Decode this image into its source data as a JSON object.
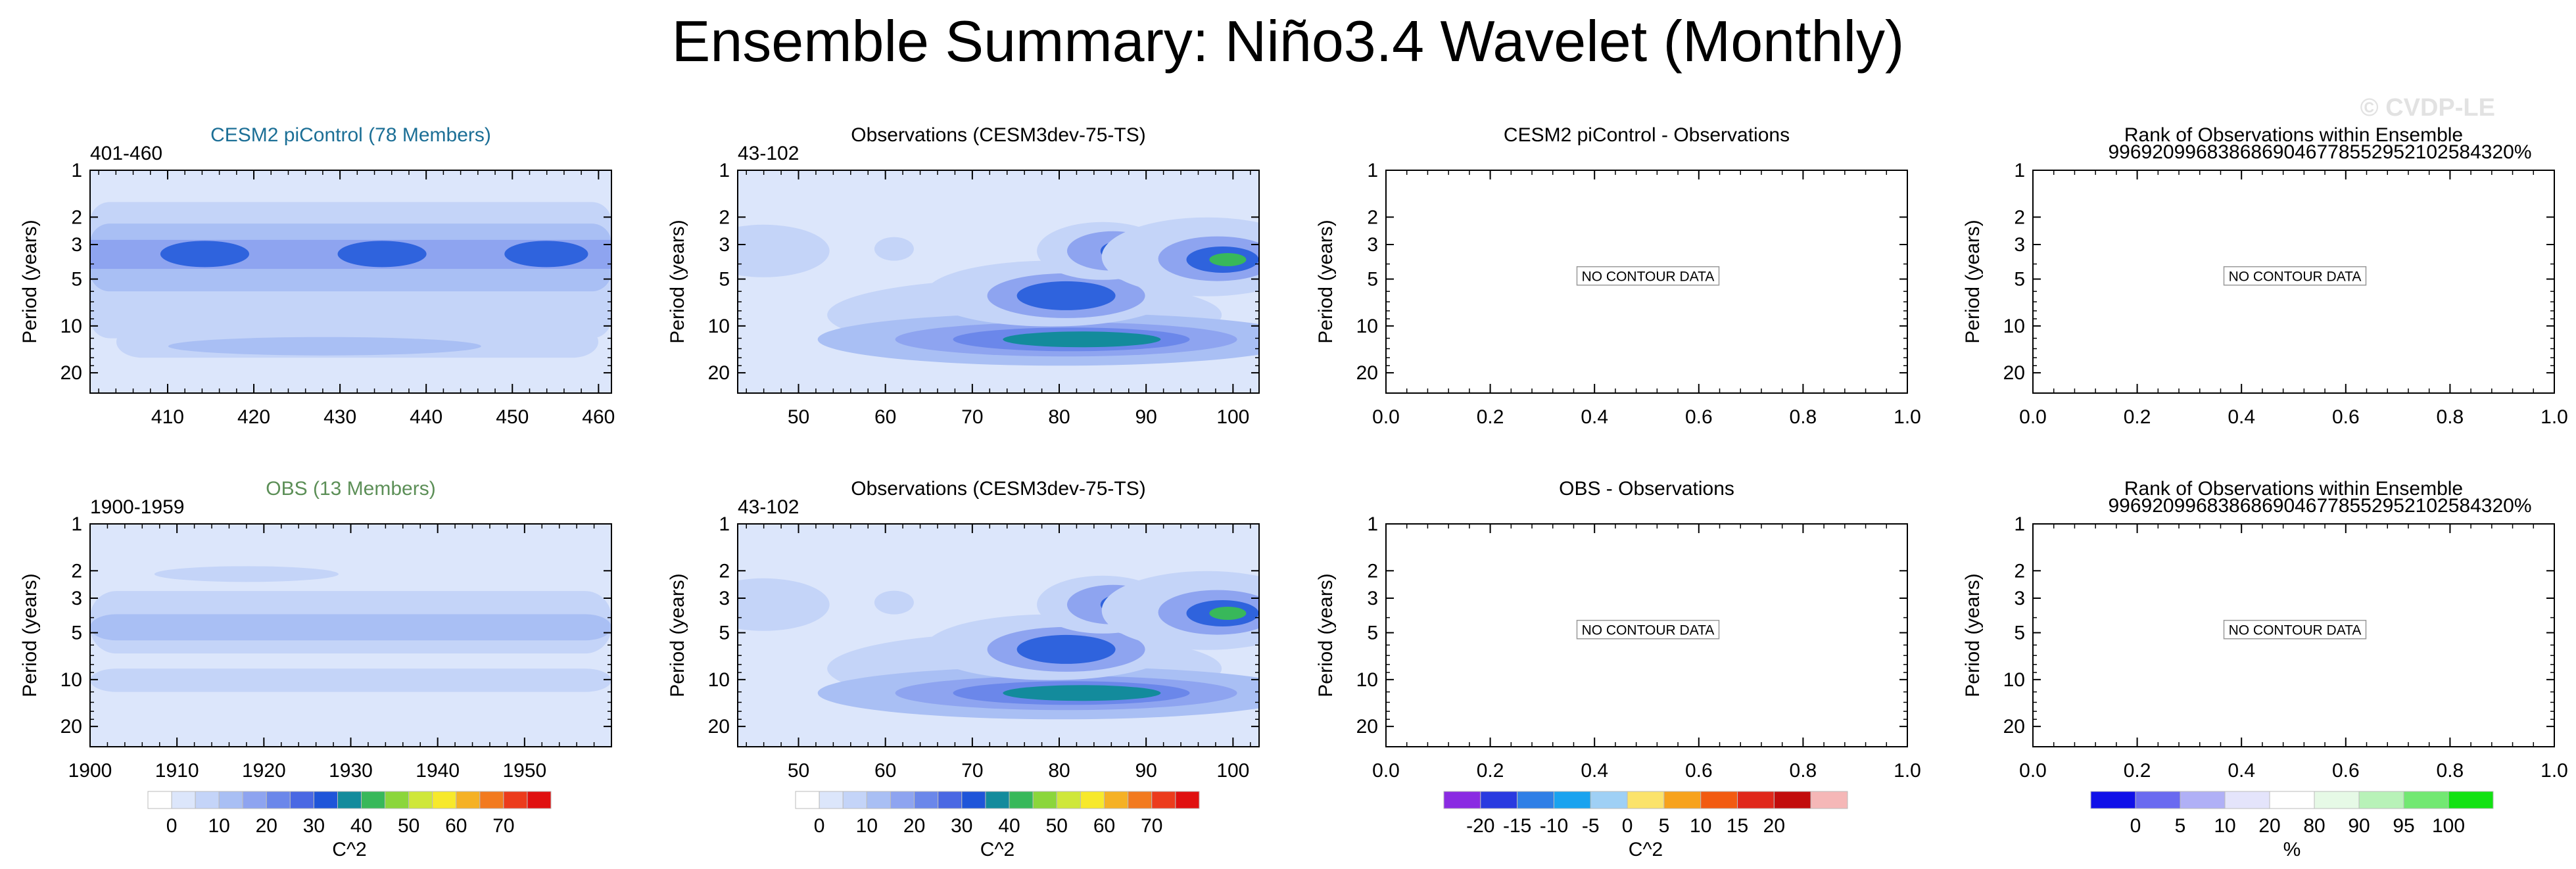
{
  "figure": {
    "title": "Ensemble Summary: Niño3.4 Wavelet (Monthly)",
    "watermark": "© CVDP-LE",
    "no_data_text": "NO CONTOUR DATA"
  },
  "colorbars": {
    "power": {
      "labels": [
        "0",
        "10",
        "20",
        "30",
        "40",
        "50",
        "60",
        "70"
      ],
      "unit": "C^2",
      "colors": [
        "#ffffff",
        "#dce6fb",
        "#c4d4f8",
        "#a9bff4",
        "#8ea4f0",
        "#6b87ea",
        "#4a68e3",
        "#1f55d9",
        "#138b9c",
        "#38b85a",
        "#8bd63b",
        "#cfe73a",
        "#f7e92c",
        "#f5b125",
        "#f27a1f",
        "#ec3b1c",
        "#e01010"
      ]
    },
    "diff": {
      "labels": [
        "-20",
        "-15",
        "-10",
        "-5",
        "0",
        "5",
        "10",
        "15",
        "20"
      ],
      "unit": "C^2",
      "colors": [
        "#8a2be2",
        "#2a3ae0",
        "#2f7fe6",
        "#1aa3ef",
        "#9fd0f5",
        "#fbe36b",
        "#f7a21c",
        "#f25b11",
        "#e0281b",
        "#c20c0c",
        "#f5b7b7"
      ]
    },
    "rank": {
      "labels": [
        "0",
        "5",
        "10",
        "20",
        "80",
        "90",
        "95",
        "100"
      ],
      "unit": "%",
      "colors": [
        "#1010e8",
        "#6a6af0",
        "#b0b0f6",
        "#e4e4fb",
        "#ffffff",
        "#e6f9e6",
        "#b8f2b8",
        "#72e872",
        "#12e212"
      ]
    }
  },
  "chart_data": [
    {
      "id": "cesm2-ensemble",
      "type": "heatmap",
      "title": "CESM2 piControl (78 Members)",
      "title_color": "#1c6f96",
      "subtitle": "401-460",
      "ylabel": "Period (years)",
      "yticks": [
        1,
        2,
        3,
        5,
        10,
        20
      ],
      "ylim": [
        1,
        27
      ],
      "xticks": [
        410,
        420,
        430,
        440,
        450,
        460
      ],
      "xlim": [
        401,
        461.5
      ]
    },
    {
      "id": "obs-top",
      "type": "heatmap",
      "title": "Observations (CESM3dev-75-TS)",
      "subtitle": "43-102",
      "ylabel": "Period (years)",
      "yticks": [
        1,
        2,
        3,
        5,
        10,
        20
      ],
      "ylim": [
        1,
        27
      ],
      "xticks": [
        50,
        60,
        70,
        80,
        90,
        100
      ],
      "xlim": [
        43,
        103
      ]
    },
    {
      "id": "cesm2-minus-obs",
      "type": "heatmap",
      "title": "CESM2 piControl - Observations",
      "ylabel": "Period (years)",
      "yticks": [
        1,
        2,
        3,
        5,
        10,
        20
      ],
      "ylim": [
        1,
        27
      ],
      "xticks": [
        "0.0",
        "0.2",
        "0.4",
        "0.6",
        "0.8",
        "1.0"
      ],
      "xlim": [
        0,
        1
      ]
    },
    {
      "id": "rank-top",
      "type": "heatmap",
      "title": "Rank of Observations within Ensemble",
      "subtitle": "99692099683868690467785529521025843​20%",
      "ylabel": "Period (years)",
      "yticks": [
        1,
        2,
        3,
        5,
        10,
        20
      ],
      "ylim": [
        1,
        27
      ],
      "xticks": [
        "0.0",
        "0.2",
        "0.4",
        "0.6",
        "0.8",
        "1.0"
      ],
      "xlim": [
        0,
        1
      ]
    },
    {
      "id": "obs-ensemble",
      "type": "heatmap",
      "title": "OBS (13 Members)",
      "title_color": "#5c8f57",
      "subtitle": "1900-1959",
      "ylabel": "Period (years)",
      "yticks": [
        1,
        2,
        3,
        5,
        10,
        20
      ],
      "ylim": [
        1,
        27
      ],
      "xticks": [
        1900,
        1910,
        1920,
        1930,
        1940,
        1950
      ],
      "xlim": [
        1900,
        1960
      ]
    },
    {
      "id": "obs-bottom",
      "type": "heatmap",
      "title": "Observations (CESM3dev-75-TS)",
      "subtitle": "43-102",
      "ylabel": "Period (years)",
      "yticks": [
        1,
        2,
        3,
        5,
        10,
        20
      ],
      "ylim": [
        1,
        27
      ],
      "xticks": [
        50,
        60,
        70,
        80,
        90,
        100
      ],
      "xlim": [
        43,
        103
      ]
    },
    {
      "id": "obs-minus-obs",
      "type": "heatmap",
      "title": "OBS - Observations",
      "ylabel": "Period (years)",
      "yticks": [
        1,
        2,
        3,
        5,
        10,
        20
      ],
      "ylim": [
        1,
        27
      ],
      "xticks": [
        "0.0",
        "0.2",
        "0.4",
        "0.6",
        "0.8",
        "1.0"
      ],
      "xlim": [
        0,
        1
      ]
    },
    {
      "id": "rank-bottom",
      "type": "heatmap",
      "title": "Rank of Observations within Ensemble",
      "subtitle": "99692099683868690467785529521025843​20%",
      "ylabel": "Period (years)",
      "yticks": [
        1,
        2,
        3,
        5,
        10,
        20
      ],
      "ylim": [
        1,
        27
      ],
      "xticks": [
        "0.0",
        "0.2",
        "0.4",
        "0.6",
        "0.8",
        "1.0"
      ],
      "xlim": [
        0,
        1
      ]
    }
  ]
}
